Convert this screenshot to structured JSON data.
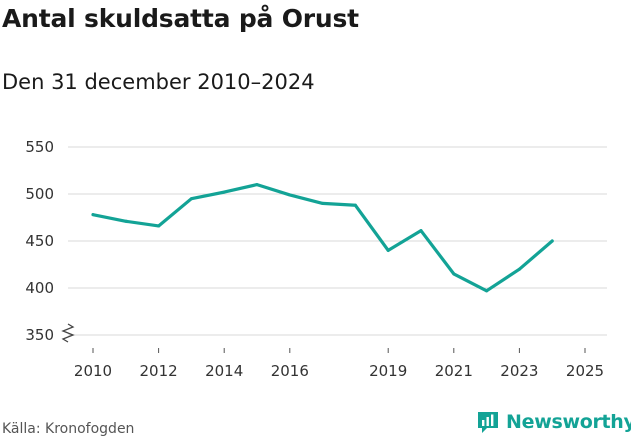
{
  "chart_data": {
    "type": "line",
    "title": "Antal skuldsatta på Orust",
    "subtitle": "Den 31 december 2010–2024",
    "xlabel": "",
    "ylabel": "",
    "x": [
      2010,
      2011,
      2012,
      2013,
      2014,
      2015,
      2016,
      2017,
      2018,
      2019,
      2020,
      2021,
      2022,
      2023,
      2024
    ],
    "series": [
      {
        "values": [
          478,
          471,
          466,
          495,
          502,
          510,
          499,
          490,
          488,
          440,
          461,
          415,
          397,
          420,
          450
        ]
      }
    ],
    "x_ticks": [
      "2010",
      "2012",
      "2014",
      "2016",
      "2019",
      "2021",
      "2023",
      "2025"
    ],
    "y_ticks": [
      "350",
      "400",
      "450",
      "500",
      "550"
    ],
    "ylim": [
      350,
      550
    ],
    "y_axis_break": true,
    "grid": "horizontal",
    "line_color": "#13a396"
  },
  "source": "Källa: Kronofogden",
  "brand": {
    "name": "Newsworthy",
    "color": "#13a396"
  }
}
